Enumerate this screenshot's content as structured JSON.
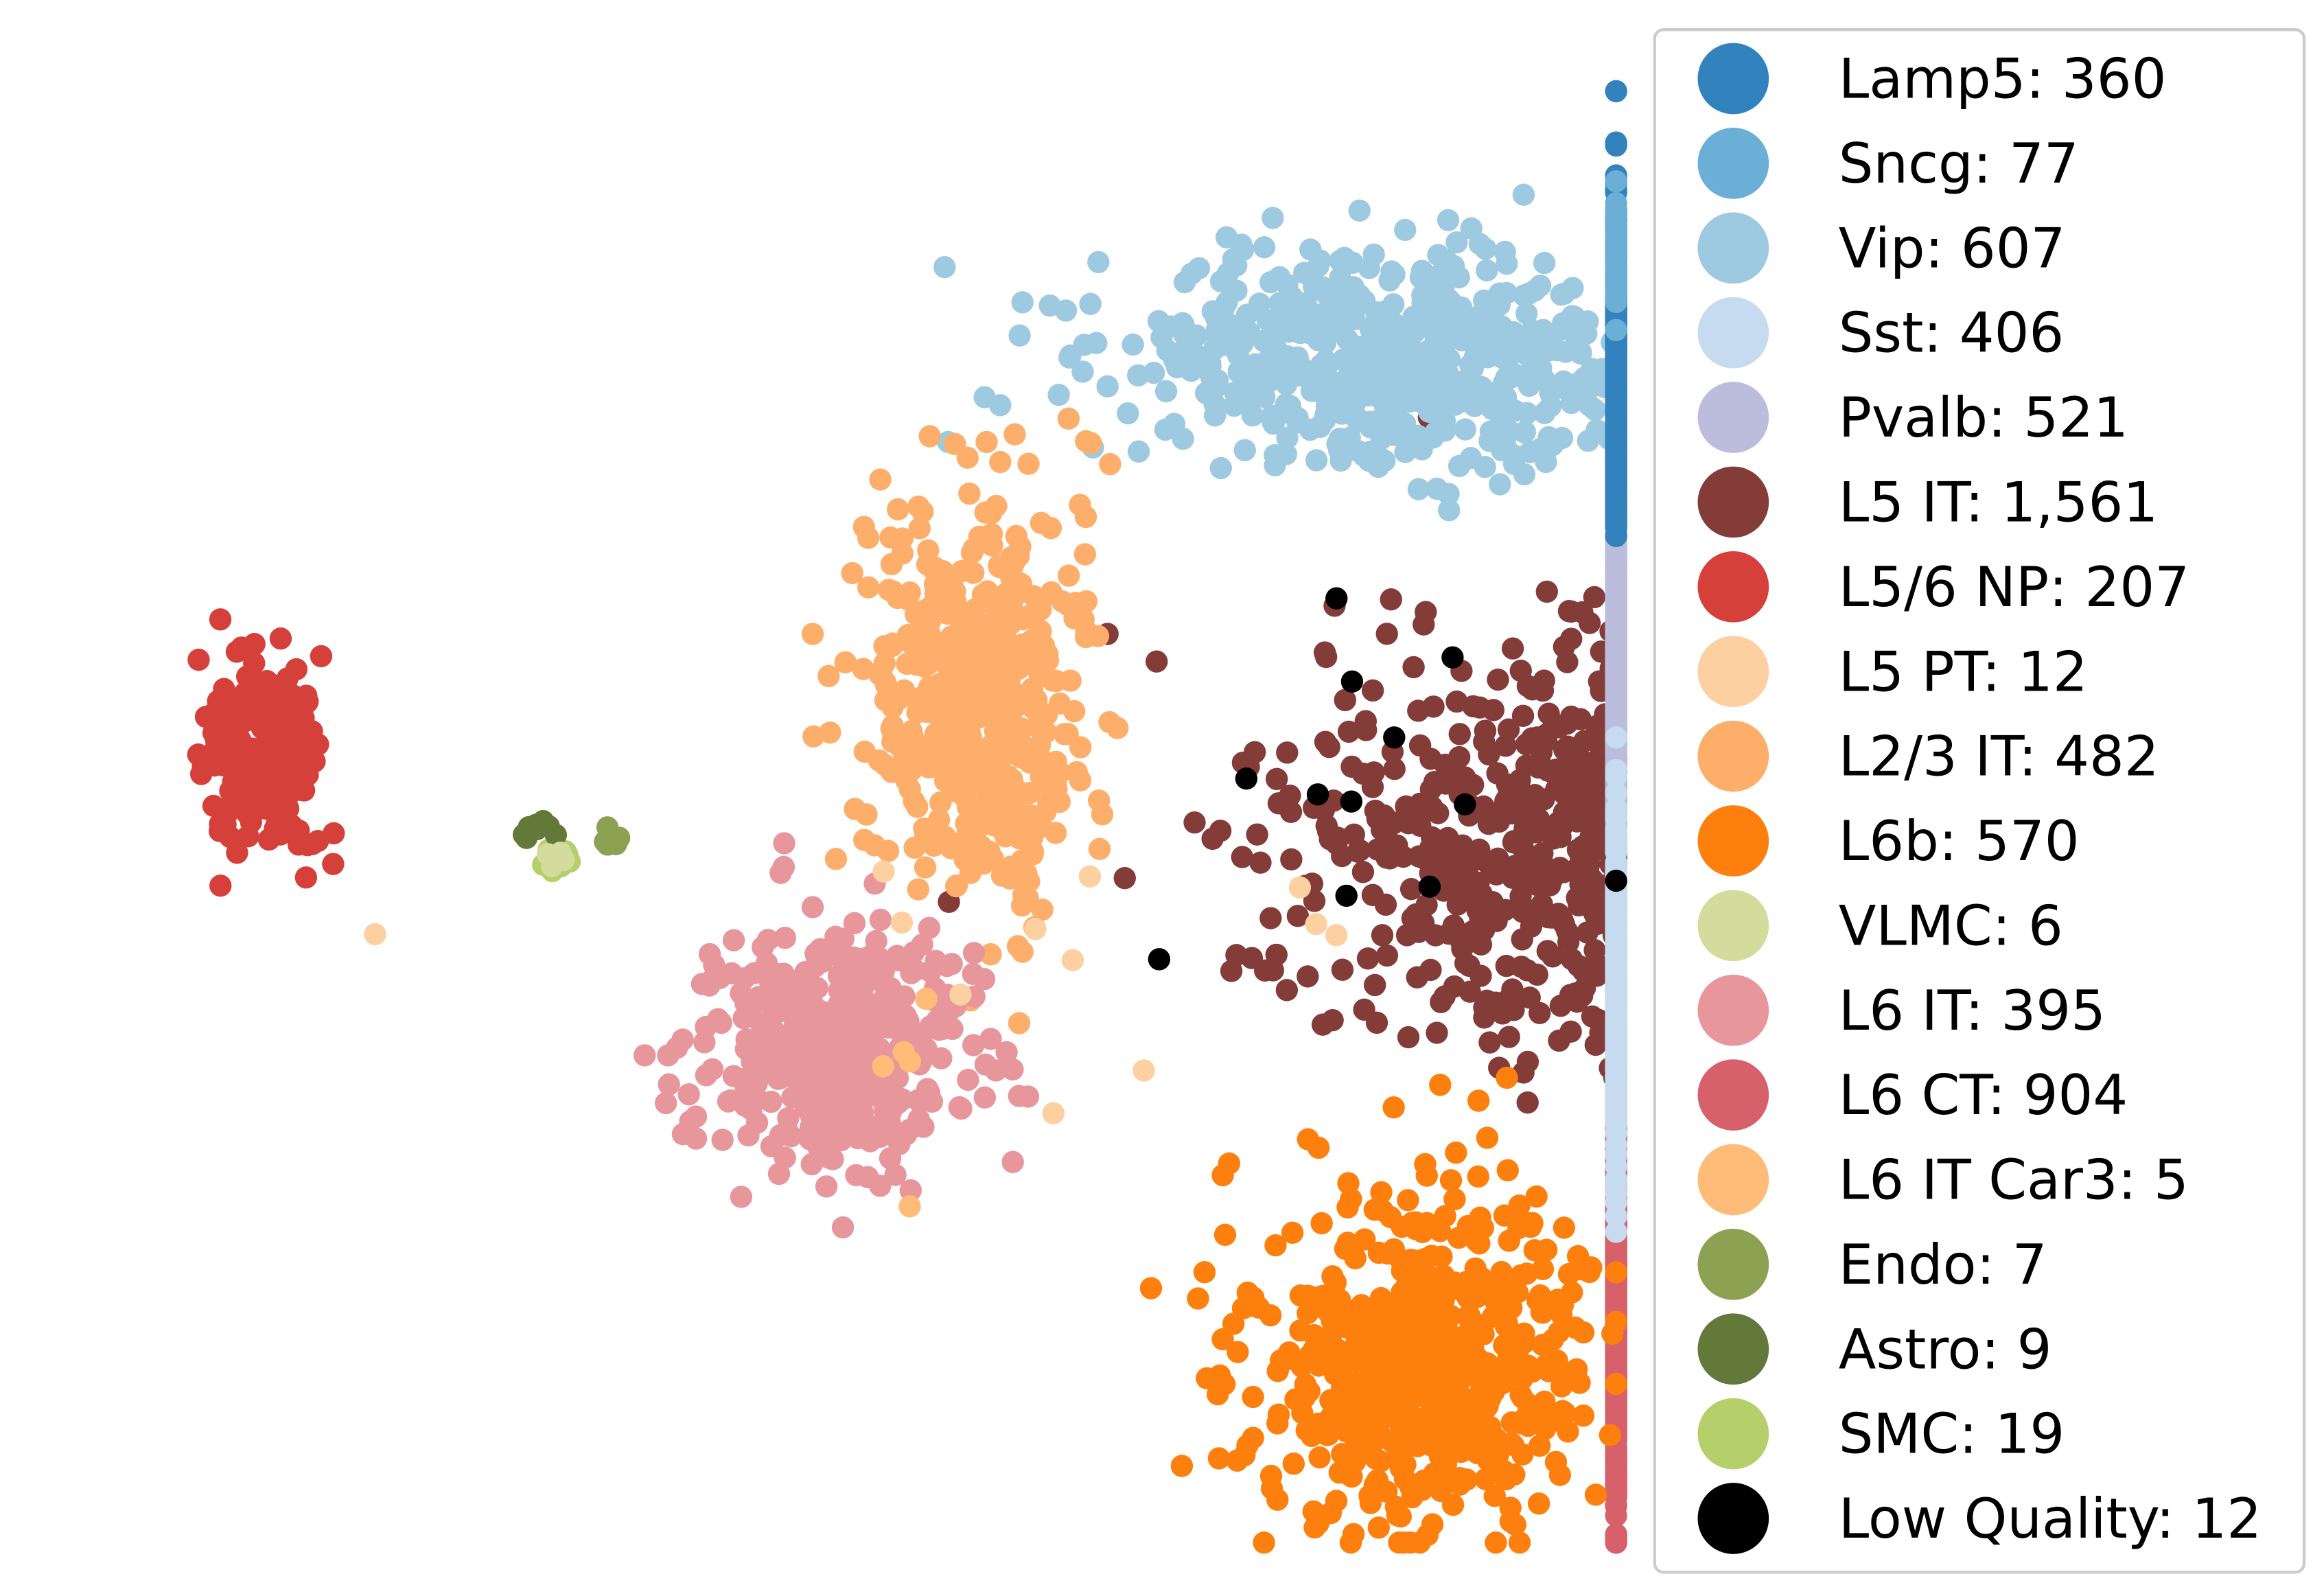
{
  "chart_data": {
    "type": "scatter",
    "title": "",
    "xlabel": "",
    "ylabel": "",
    "axes_visible": false,
    "grid": false,
    "legend_placement": "right",
    "legend": [
      {
        "label": "Lamp5: 360",
        "color": "#3182bd"
      },
      {
        "label": "Sncg: 77",
        "color": "#6baed6"
      },
      {
        "label": "Vip: 607",
        "color": "#9ecae1"
      },
      {
        "label": "Sst: 406",
        "color": "#c6dbef"
      },
      {
        "label": "Pvalb: 521",
        "color": "#bcbddc"
      },
      {
        "label": "L5 IT: 1,561",
        "color": "#843c39"
      },
      {
        "label": "L5/6 NP: 207",
        "color": "#d6403a"
      },
      {
        "label": "L5 PT: 12",
        "color": "#fdd0a2"
      },
      {
        "label": "L2/3 IT: 482",
        "color": "#fdae6b"
      },
      {
        "label": "L6b: 570",
        "color": "#fd7f0e"
      },
      {
        "label": "VLMC: 6",
        "color": "#d3dc9c"
      },
      {
        "label": "L6 IT: 395",
        "color": "#e7969c"
      },
      {
        "label": "L6 CT: 904",
        "color": "#d6616b"
      },
      {
        "label": "L6 IT Car3: 5",
        "color": "#ffbb78"
      },
      {
        "label": "Endo: 7",
        "color": "#8ca252"
      },
      {
        "label": "Astro: 9",
        "color": "#637939"
      },
      {
        "label": "SMC: 19",
        "color": "#b5cf6b"
      },
      {
        "label": "Low Quality: 12",
        "color": "#000000"
      }
    ],
    "clusters": [
      {
        "name": "Lamp5",
        "count": 360,
        "color": "#3182bd",
        "center": [
          1380,
          250
        ],
        "spread": [
          50,
          55
        ]
      },
      {
        "name": "Sncg",
        "count": 77,
        "color": "#6baed6",
        "center": [
          1328,
          172
        ],
        "spread": [
          12,
          18
        ]
      },
      {
        "name": "Vip",
        "count": 607,
        "color": "#9ecae1",
        "center": [
          940,
          240
        ],
        "spread": [
          100,
          35
        ]
      },
      {
        "name": "Sst",
        "count": 406,
        "color": "#c6dbef",
        "center": [
          1975,
          665
        ],
        "spread": [
          40,
          60
        ]
      },
      {
        "name": "Pvalb",
        "count": 521,
        "color": "#bcbddc",
        "center": [
          1900,
          430
        ],
        "spread": [
          40,
          75
        ]
      },
      {
        "name": "L5 IT",
        "count": 1561,
        "color": "#843c39",
        "center": [
          1165,
          575
        ],
        "spread": [
          130,
          70
        ]
      },
      {
        "name": "L5/6 NP",
        "count": 207,
        "color": "#d6403a",
        "center": [
          178,
          508
        ],
        "spread": [
          20,
          35
        ]
      },
      {
        "name": "L5 PT",
        "count": 12,
        "color": "#fdd0a2",
        "center": [
          700,
          650
        ],
        "spread": [
          150,
          60
        ]
      },
      {
        "name": "L2/3 IT",
        "count": 482,
        "color": "#fdae6b",
        "center": [
          660,
          475
        ],
        "spread": [
          38,
          65
        ]
      },
      {
        "name": "L6b",
        "count": 570,
        "color": "#fd7f0e",
        "center": [
          960,
          920
        ],
        "spread": [
          55,
          55
        ]
      },
      {
        "name": "VLMC",
        "count": 6,
        "color": "#d3dc9c",
        "center": [
          375,
          580
        ],
        "spread": [
          4,
          4
        ]
      },
      {
        "name": "L6 IT",
        "count": 395,
        "color": "#e7969c",
        "center": [
          560,
          710
        ],
        "spread": [
          45,
          40
        ]
      },
      {
        "name": "L6 CT",
        "count": 904,
        "color": "#d6616b",
        "center": [
          1485,
          860
        ],
        "spread": [
          55,
          80
        ]
      },
      {
        "name": "L6 IT Car3",
        "count": 5,
        "color": "#ffbb78",
        "center": [
          620,
          700
        ],
        "spread": [
          15,
          30
        ]
      },
      {
        "name": "Endo",
        "count": 7,
        "color": "#8ca252",
        "center": [
          415,
          568
        ],
        "spread": [
          6,
          4
        ]
      },
      {
        "name": "Astro",
        "count": 9,
        "color": "#637939",
        "center": [
          365,
          556
        ],
        "spread": [
          6,
          4
        ]
      },
      {
        "name": "SMC",
        "count": 19,
        "color": "#b5cf6b",
        "center": [
          375,
          580
        ],
        "spread": [
          5,
          4
        ]
      },
      {
        "name": "Low Quality",
        "count": 12,
        "color": "#000000",
        "center": [
          950,
          520
        ],
        "spread": [
          70,
          70
        ]
      }
    ]
  }
}
